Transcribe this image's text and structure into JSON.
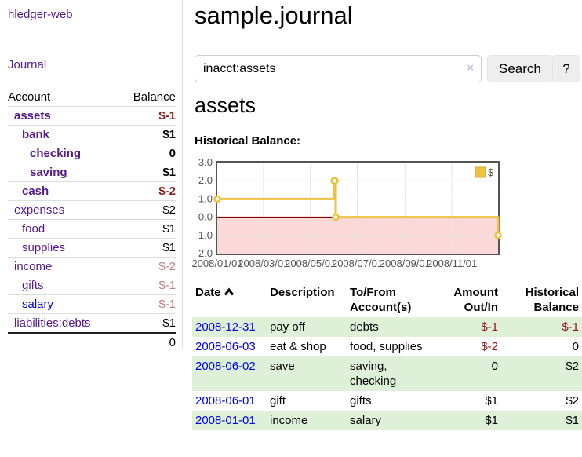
{
  "sidebar": {
    "app_title": "hledger-web",
    "journal_link": "Journal",
    "accounts_table": {
      "headers": [
        "Account",
        "Balance"
      ],
      "rows": [
        {
          "account": "assets",
          "balance": "$-1",
          "depth": 1,
          "bold": true,
          "link_color": "purple"
        },
        {
          "account": "bank",
          "balance": "$1",
          "depth": 2,
          "bold": true,
          "link_color": "purple"
        },
        {
          "account": "checking",
          "balance": "0",
          "depth": 3,
          "bold": true,
          "link_color": "purple"
        },
        {
          "account": "saving",
          "balance": "$1",
          "depth": 3,
          "bold": true,
          "link_color": "purple"
        },
        {
          "account": "cash",
          "balance": "$-2",
          "depth": 2,
          "bold": true,
          "link_color": "purple"
        },
        {
          "account": "expenses",
          "balance": "$2",
          "depth": 1,
          "bold": false,
          "link_color": "purple"
        },
        {
          "account": "food",
          "balance": "$1",
          "depth": 2,
          "bold": false,
          "link_color": "purple"
        },
        {
          "account": "supplies",
          "balance": "$1",
          "depth": 2,
          "bold": false,
          "link_color": "purple"
        },
        {
          "account": "income",
          "balance": "$-2",
          "depth": 1,
          "bold": false,
          "link_color": "purple"
        },
        {
          "account": "gifts",
          "balance": "$-1",
          "depth": 2,
          "bold": false,
          "link_color": "purple"
        },
        {
          "account": "salary",
          "balance": "$-1",
          "depth": 2,
          "bold": false,
          "link_color": "blue"
        },
        {
          "account": "liabilities:debts",
          "balance": "$1",
          "depth": 1,
          "bold": false,
          "link_color": "purple"
        }
      ],
      "total": "0"
    }
  },
  "main": {
    "title": "sample.journal",
    "search": {
      "value": "inacct:assets",
      "clear_icon": "×",
      "button_label": "Search",
      "help_label": "?"
    },
    "account_heading": "assets",
    "chart_label": "Historical Balance:",
    "register": {
      "headers": {
        "date": "Date",
        "description": "Description",
        "tofrom_line1": "To/From",
        "tofrom_line2": "Account(s)",
        "amount_line1": "Amount",
        "amount_line2": "Out/In",
        "balance_line1": "Historical",
        "balance_line2": "Balance"
      },
      "sort_icon": "caret-up",
      "rows": [
        {
          "date": "2008-12-31",
          "description": "pay off",
          "accounts": "debts",
          "amount": "$-1",
          "balance": "$-1"
        },
        {
          "date": "2008-06-03",
          "description": "eat & shop",
          "accounts": "food, supplies",
          "amount": "$-2",
          "balance": "0"
        },
        {
          "date": "2008-06-02",
          "description": "save",
          "accounts": "saving, checking",
          "amount": "0",
          "balance": "$2"
        },
        {
          "date": "2008-06-01",
          "description": "gift",
          "accounts": "gifts",
          "amount": "$1",
          "balance": "$2"
        },
        {
          "date": "2008-01-01",
          "description": "income",
          "accounts": "salary",
          "amount": "$1",
          "balance": "$1"
        }
      ]
    }
  },
  "chart_data": {
    "type": "line",
    "title": "Historical Balance",
    "legend": "$",
    "legend_position": "top-right",
    "grid": true,
    "xlim": [
      0,
      365
    ],
    "ylim": [
      -2,
      3
    ],
    "series": [
      {
        "name": "$",
        "color": "#edc240",
        "steps": true,
        "points": [
          {
            "date": "2008-01-01",
            "x": 0,
            "y": 1
          },
          {
            "date": "2008-06-01",
            "x": 152,
            "y": 2
          },
          {
            "date": "2008-06-02",
            "x": 153,
            "y": 2
          },
          {
            "date": "2008-06-03",
            "x": 154,
            "y": 0
          },
          {
            "date": "2008-12-31",
            "x": 365,
            "y": -1
          }
        ]
      }
    ],
    "x_ticks": [
      {
        "x": 0,
        "label": "2008/01/01"
      },
      {
        "x": 60,
        "label": "2008/03/01"
      },
      {
        "x": 121,
        "label": "2008/05/01"
      },
      {
        "x": 182,
        "label": "2008/07/01"
      },
      {
        "x": 244,
        "label": "2008/09/01"
      },
      {
        "x": 305,
        "label": "2008/11/01"
      }
    ],
    "y_ticks": [
      {
        "y": 3,
        "label": "3.0"
      },
      {
        "y": 2,
        "label": "2.0"
      },
      {
        "y": 1,
        "label": "1.0"
      },
      {
        "y": 0,
        "label": "0.0"
      },
      {
        "y": -1,
        "label": "-1.0"
      },
      {
        "y": -2,
        "label": "-2.0"
      }
    ],
    "negative_region_color": "#fbd9d9",
    "zero_line_color": "#8b0000",
    "grid_color": "#e6e6e6",
    "border_color": "#545454"
  },
  "colors": {
    "link_purple": "#551a8b",
    "link_blue": "#0000ee",
    "negative_strong": "#8b1a1a",
    "negative_soft": "#c47e7e",
    "row_stripe_green": "#dff0d8",
    "series_gold": "#edc240",
    "sidebar_divider": "#dddddd"
  }
}
